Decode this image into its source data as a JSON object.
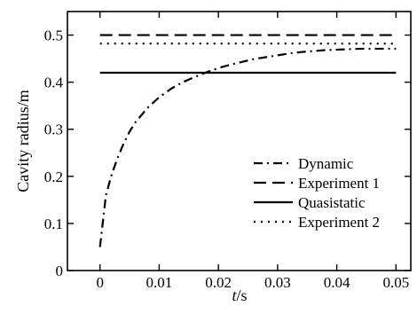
{
  "chart_data": {
    "type": "line",
    "title": "",
    "xlabel": "t/s",
    "xlabel_var": "t",
    "xlabel_unit": "/s",
    "ylabel": "Cavity  radius/m",
    "xlim": [
      -0.0055,
      0.0525
    ],
    "ylim": [
      0,
      0.55
    ],
    "x_ticks": [
      0,
      0.01,
      0.02,
      0.03,
      0.04,
      0.05
    ],
    "x_tick_labels": [
      "0",
      "0.01",
      "0.02",
      "0.03",
      "0.04",
      "0.05"
    ],
    "y_ticks": [
      0,
      0.1,
      0.2,
      0.3,
      0.4,
      0.5
    ],
    "y_tick_labels": [
      "0",
      "0.1",
      "0.2",
      "0.3",
      "0.4",
      "0.5"
    ],
    "grid": false,
    "legend_position": "lower-right",
    "series": [
      {
        "name": "Dynamic",
        "style": "dashdot",
        "x": [
          0,
          0.001,
          0.002,
          0.003,
          0.004,
          0.005,
          0.006,
          0.008,
          0.01,
          0.012,
          0.014,
          0.016,
          0.018,
          0.02,
          0.022,
          0.024,
          0.026,
          0.028,
          0.03,
          0.032,
          0.034,
          0.036,
          0.038,
          0.04,
          0.042,
          0.044,
          0.046,
          0.048,
          0.05
        ],
        "y": [
          0.05,
          0.16,
          0.205,
          0.24,
          0.27,
          0.295,
          0.315,
          0.345,
          0.368,
          0.386,
          0.4,
          0.411,
          0.421,
          0.43,
          0.437,
          0.443,
          0.449,
          0.453,
          0.457,
          0.461,
          0.464,
          0.466,
          0.468,
          0.469,
          0.47,
          0.471,
          0.471,
          0.471,
          0.471
        ]
      },
      {
        "name": "Experiment 1",
        "style": "dashed",
        "x": [
          0,
          0.05
        ],
        "y": [
          0.5,
          0.5
        ]
      },
      {
        "name": "Quasistatic",
        "style": "solid",
        "x": [
          0,
          0.05
        ],
        "y": [
          0.42,
          0.42
        ]
      },
      {
        "name": "Experiment 2",
        "style": "dotted",
        "x": [
          0,
          0.05
        ],
        "y": [
          0.482,
          0.482
        ]
      }
    ]
  }
}
